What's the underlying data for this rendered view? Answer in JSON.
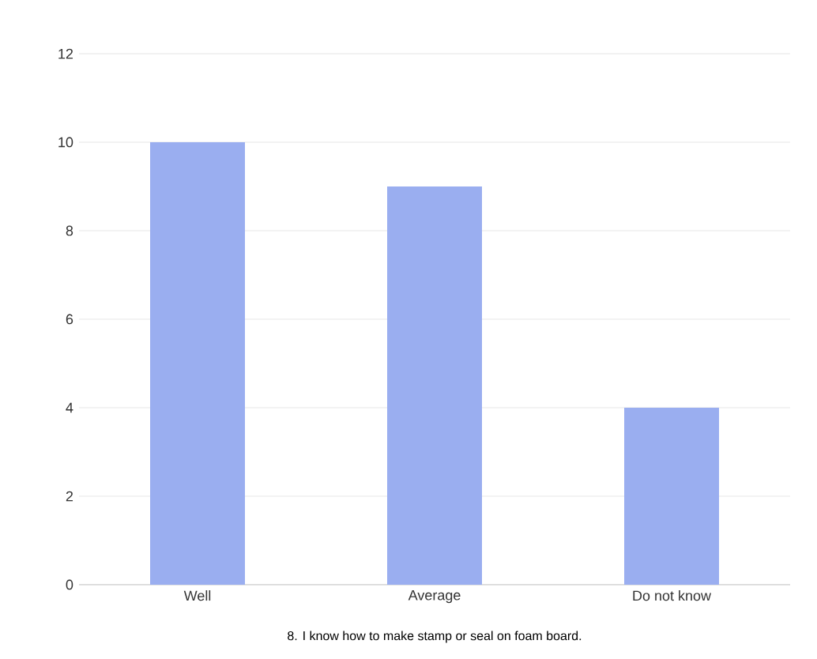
{
  "chart_data": {
    "type": "bar",
    "categories": [
      "Well",
      "Average",
      "Do not know"
    ],
    "values": [
      10,
      9,
      4
    ],
    "color": "#9aaef0",
    "ylim": [
      0,
      12
    ],
    "yticks": [
      0,
      2,
      4,
      6,
      8,
      10,
      12
    ],
    "grid": "y",
    "annotations": [
      "8. I know how to make stamp or seal on foam board."
    ]
  }
}
